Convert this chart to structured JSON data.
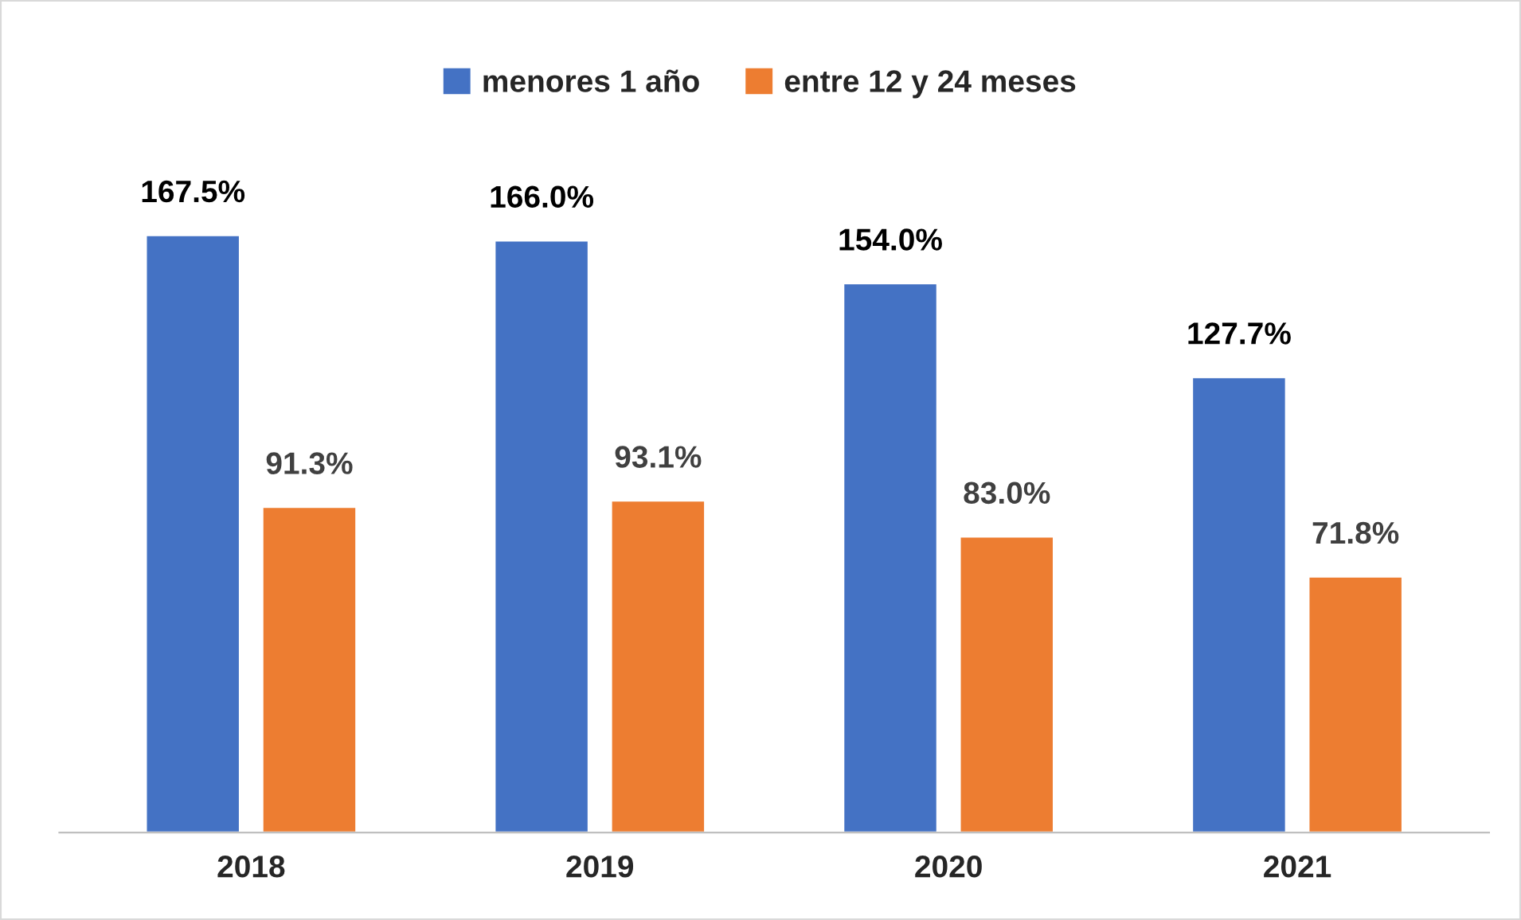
{
  "chart_data": {
    "type": "bar",
    "categories": [
      "2018",
      "2019",
      "2020",
      "2021"
    ],
    "series": [
      {
        "name": "menores 1 año",
        "color": "#4472c4",
        "values": [
          167.5,
          166.0,
          154.0,
          127.7
        ],
        "value_labels": [
          "167.5%",
          "166.0%",
          "154.0%",
          "127.7%"
        ]
      },
      {
        "name": "entre 12 y 24 meses",
        "color": "#ed7d31",
        "values": [
          91.3,
          93.1,
          83.0,
          71.8
        ],
        "value_labels": [
          "91.3%",
          "93.1%",
          "83.0%",
          "71.8%"
        ]
      }
    ],
    "legend": "top",
    "grid": false
  }
}
